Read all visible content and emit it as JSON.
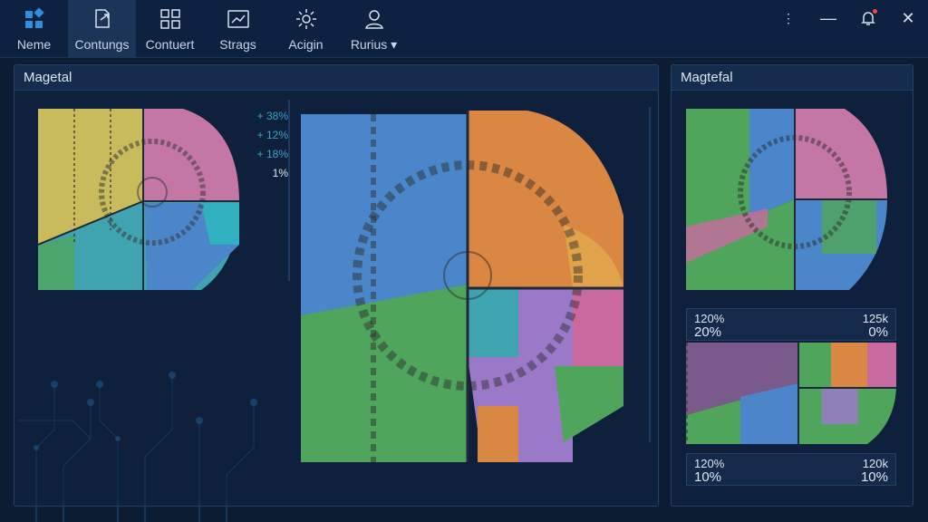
{
  "nav": [
    {
      "label": "Neme",
      "icon": "dashboard-grid-icon",
      "active": false
    },
    {
      "label": "Contungs",
      "icon": "export-document-icon",
      "active": true
    },
    {
      "label": "Contuert",
      "icon": "four-squares-icon",
      "active": false
    },
    {
      "label": "Strags",
      "icon": "chart-window-icon",
      "active": false
    },
    {
      "label": "Acigin",
      "icon": "settings-gear-icon",
      "active": false
    },
    {
      "label": "Rurius ▾",
      "icon": "user-profile-icon",
      "active": false
    }
  ],
  "left_panel": {
    "title": "Magetal",
    "legend": [
      "+ 38%",
      "+ 12%",
      "+ 18%",
      "1%"
    ]
  },
  "right_panel": {
    "title": "Magtefal",
    "stats_a": {
      "l_top": "120%",
      "l_bot": "20%",
      "r_top": "125k",
      "r_bot": "0%"
    },
    "stats_b": {
      "l_top": "120%",
      "l_bot": "10%",
      "r_top": "120k",
      "r_bot": "10%"
    }
  },
  "colors": {
    "background": "#0d1c33",
    "accent": "#2f8fd8",
    "yellow": "#c8bb5c",
    "pink": "#c477a4",
    "blue": "#4a86c9",
    "orange": "#d98743",
    "green": "#4fa55c",
    "purple": "#9a7ac8",
    "teal": "#3fa4b0",
    "notification": "#e74c3c"
  }
}
